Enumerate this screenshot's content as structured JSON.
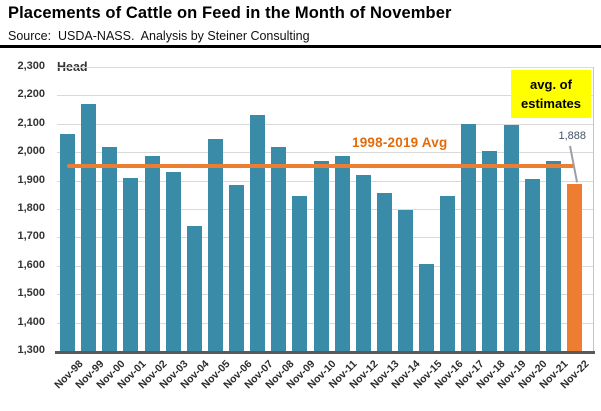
{
  "header": {
    "title": "Placements of Cattle on Feed in the Month of November",
    "source": "Source:  USDA-NASS.  Analysis by Steiner Consulting"
  },
  "chart_data": {
    "type": "bar",
    "title": "Placements of Cattle on Feed in the Month of November",
    "unit_label": "Head",
    "categories": [
      "Nov-98",
      "Nov-99",
      "Nov-00",
      "Nov-01",
      "Nov-02",
      "Nov-03",
      "Nov-04",
      "Nov-05",
      "Nov-06",
      "Nov-07",
      "Nov-08",
      "Nov-09",
      "Nov-10",
      "Nov-11",
      "Nov-12",
      "Nov-13",
      "Nov-14",
      "Nov-15",
      "Nov-16",
      "Nov-17",
      "Nov-18",
      "Nov-19",
      "Nov-20",
      "Nov-21",
      "Nov-22"
    ],
    "values": [
      2065,
      2170,
      2020,
      1910,
      1985,
      1930,
      1740,
      2045,
      1885,
      2130,
      2020,
      1845,
      1970,
      1985,
      1920,
      1855,
      1795,
      1605,
      1845,
      2100,
      2005,
      2095,
      1905,
      1970,
      1888
    ],
    "highlight_index": 24,
    "colors": {
      "bar_default": "#3a8ba8",
      "bar_highlight": "#ed7d31",
      "avg_line": "#ed7d31",
      "avg_text": "#e36c0a",
      "grid": "#d9d9d9",
      "callout_bg": "#ffff00",
      "value_label": "#44546a"
    },
    "ylim": [
      1300,
      2300
    ],
    "ytick_labels": [
      "2,300",
      "2,200",
      "2,100",
      "2,000",
      "1,900",
      "1,800",
      "1,700",
      "1,600",
      "1,500",
      "1,400",
      "1,300"
    ],
    "grid": true,
    "legend": "none",
    "avg_line": {
      "value": 1950,
      "label": "1998-2019 Avg"
    },
    "annotations": {
      "estimate_note": "avg. of estimates",
      "last_bar_value_label": "1,888"
    }
  }
}
